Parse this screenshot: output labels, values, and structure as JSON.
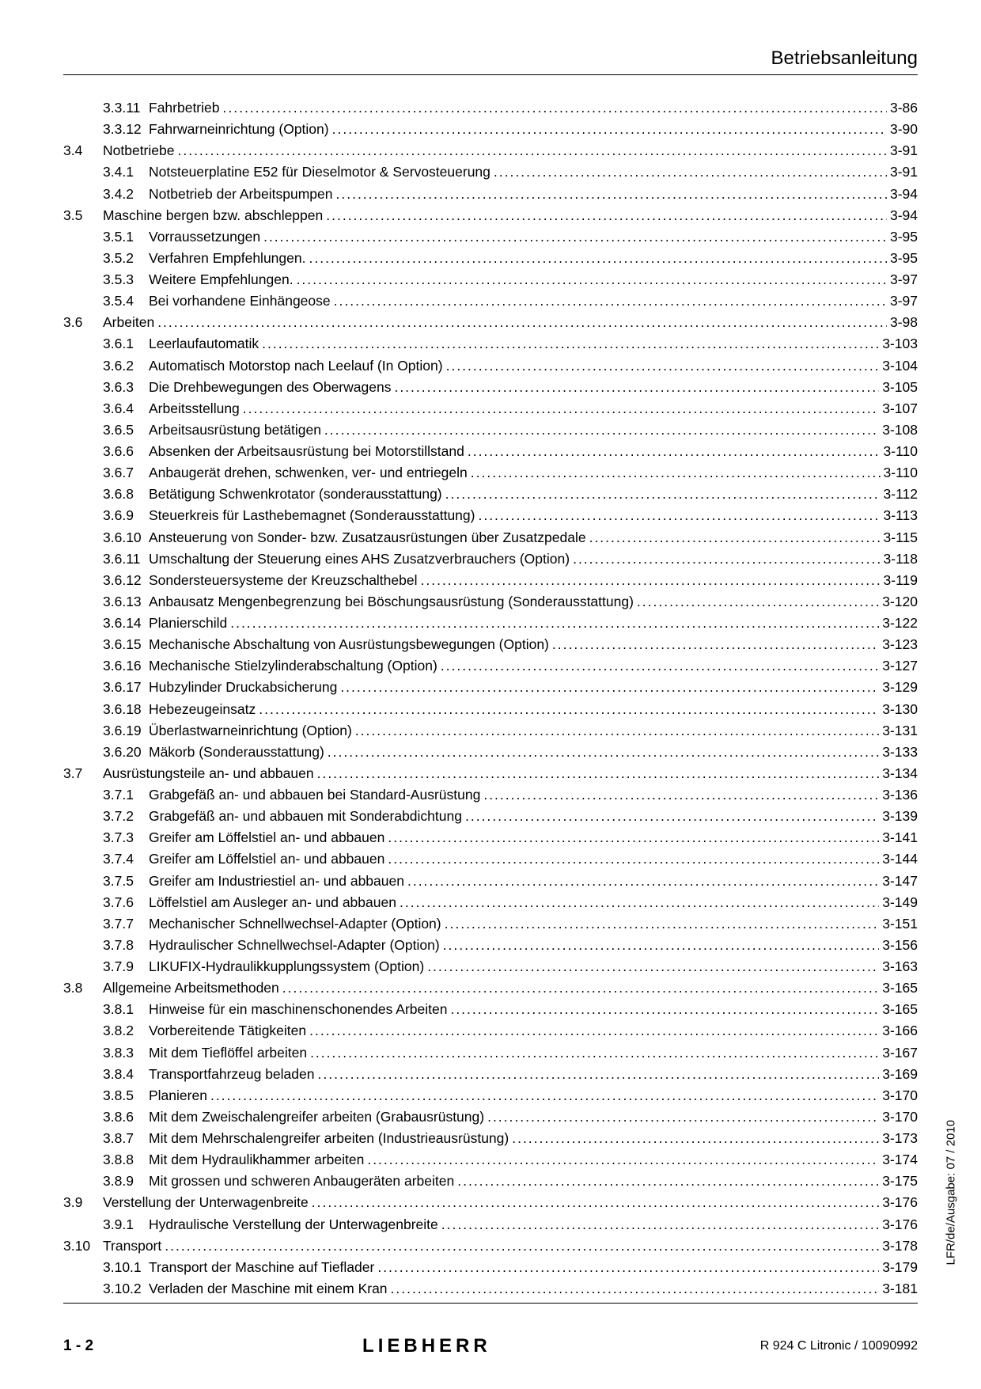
{
  "header": {
    "title": "Betriebsanleitung"
  },
  "footer": {
    "page_label": "1 - 2",
    "logo_text": "LIEBHERR",
    "doc_ref": "R 924 C Litronic / 10090992"
  },
  "side": {
    "text": "LFR/de/Ausgabe: 07 / 2010"
  },
  "toc": [
    {
      "sec": "",
      "sub": "3.3.11",
      "title": "Fahrbetrieb",
      "page": "3-86"
    },
    {
      "sec": "",
      "sub": "3.3.12",
      "title": "Fahrwarneinrichtung (Option)",
      "page": "3-90"
    },
    {
      "sec": "3.4",
      "sub": "",
      "title": "Notbetriebe",
      "page": "3-91"
    },
    {
      "sec": "",
      "sub": "3.4.1",
      "title": "Notsteuerplatine E52 für Dieselmotor & Servosteuerung",
      "page": "3-91"
    },
    {
      "sec": "",
      "sub": "3.4.2",
      "title": "Notbetrieb der Arbeitspumpen",
      "page": "3-94"
    },
    {
      "sec": "3.5",
      "sub": "",
      "title": "Maschine bergen bzw. abschleppen",
      "page": "3-94"
    },
    {
      "sec": "",
      "sub": "3.5.1",
      "title": "Vorraussetzungen",
      "page": "3-95"
    },
    {
      "sec": "",
      "sub": "3.5.2",
      "title": "Verfahren Empfehlungen.",
      "page": "3-95"
    },
    {
      "sec": "",
      "sub": "3.5.3",
      "title": "Weitere Empfehlungen.",
      "page": "3-97"
    },
    {
      "sec": "",
      "sub": "3.5.4",
      "title": "Bei vorhandene Einhängeose",
      "page": "3-97"
    },
    {
      "sec": "3.6",
      "sub": "",
      "title": "Arbeiten",
      "page": "3-98"
    },
    {
      "sec": "",
      "sub": "3.6.1",
      "title": "Leerlaufautomatik",
      "page": "3-103"
    },
    {
      "sec": "",
      "sub": "3.6.2",
      "title": "Automatisch Motorstop nach Leelauf (In Option)",
      "page": "3-104"
    },
    {
      "sec": "",
      "sub": "3.6.3",
      "title": "Die Drehbewegungen des Oberwagens",
      "page": "3-105"
    },
    {
      "sec": "",
      "sub": "3.6.4",
      "title": "Arbeitsstellung",
      "page": "3-107"
    },
    {
      "sec": "",
      "sub": "3.6.5",
      "title": "Arbeitsausrüstung betätigen",
      "page": "3-108"
    },
    {
      "sec": "",
      "sub": "3.6.6",
      "title": "Absenken der Arbeitsausrüstung bei Motorstillstand",
      "page": "3-110"
    },
    {
      "sec": "",
      "sub": "3.6.7",
      "title": "Anbaugerät drehen, schwenken, ver- und entriegeln",
      "page": "3-110"
    },
    {
      "sec": "",
      "sub": "3.6.8",
      "title": "Betätigung Schwenkrotator (sonderausstattung)",
      "page": "3-112"
    },
    {
      "sec": "",
      "sub": "3.6.9",
      "title": "Steuerkreis für Lasthebemagnet (Sonderausstattung)",
      "page": "3-113"
    },
    {
      "sec": "",
      "sub": "3.6.10",
      "title": "Ansteuerung von Sonder- bzw. Zusatzausrüstungen über Zusatzpedale",
      "page": "3-115"
    },
    {
      "sec": "",
      "sub": "3.6.11",
      "title": "Umschaltung der Steuerung eines AHS Zusatzverbrauchers (Option)",
      "page": "3-118"
    },
    {
      "sec": "",
      "sub": "3.6.12",
      "title": "Sondersteuersysteme der Kreuzschalthebel",
      "page": "3-119"
    },
    {
      "sec": "",
      "sub": "3.6.13",
      "title": "Anbausatz Mengenbegrenzung bei Böschungsausrüstung  (Sonderausstattung)",
      "page": "3-120"
    },
    {
      "sec": "",
      "sub": "3.6.14",
      "title": "Planierschild",
      "page": "3-122"
    },
    {
      "sec": "",
      "sub": "3.6.15",
      "title": "Mechanische Abschaltung von Ausrüstungsbewegungen (Option)",
      "page": "3-123"
    },
    {
      "sec": "",
      "sub": "3.6.16",
      "title": "Mechanische Stielzylinderabschaltung (Option)",
      "page": "3-127"
    },
    {
      "sec": "",
      "sub": "3.6.17",
      "title": "Hubzylinder Druckabsicherung",
      "page": "3-129"
    },
    {
      "sec": "",
      "sub": "3.6.18",
      "title": "Hebezeugeinsatz",
      "page": "3-130"
    },
    {
      "sec": "",
      "sub": "3.6.19",
      "title": "Überlastwarneinrichtung (Option)",
      "page": "3-131"
    },
    {
      "sec": "",
      "sub": "3.6.20",
      "title": "Mäkorb (Sonderausstattung)",
      "page": "3-133"
    },
    {
      "sec": "3.7",
      "sub": "",
      "title": "Ausrüstungsteile an- und abbauen",
      "page": "3-134"
    },
    {
      "sec": "",
      "sub": "3.7.1",
      "title": "Grabgefäß an- und abbauen bei Standard-Ausrüstung",
      "page": "3-136"
    },
    {
      "sec": "",
      "sub": "3.7.2",
      "title": "Grabgefäß an- und abbauen mit Sonderabdichtung",
      "page": "3-139"
    },
    {
      "sec": "",
      "sub": "3.7.3",
      "title": "Greifer am Löffelstiel an- und abbauen",
      "page": "3-141"
    },
    {
      "sec": "",
      "sub": "3.7.4",
      "title": "Greifer am Löffelstiel an- und abbauen",
      "page": "3-144"
    },
    {
      "sec": "",
      "sub": "3.7.5",
      "title": "Greifer am Industriestiel an- und abbauen",
      "page": "3-147"
    },
    {
      "sec": "",
      "sub": "3.7.6",
      "title": "Löffelstiel am Ausleger an- und abbauen",
      "page": "3-149"
    },
    {
      "sec": "",
      "sub": "3.7.7",
      "title": "Mechanischer Schnellwechsel-Adapter (Option)",
      "page": "3-151"
    },
    {
      "sec": "",
      "sub": "3.7.8",
      "title": "Hydraulischer Schnellwechsel-Adapter (Option)",
      "page": "3-156"
    },
    {
      "sec": "",
      "sub": "3.7.9",
      "title": "LIKUFIX-Hydraulikkupplungssystem (Option)",
      "page": "3-163"
    },
    {
      "sec": "3.8",
      "sub": "",
      "title": "Allgemeine Arbeitsmethoden",
      "page": "3-165"
    },
    {
      "sec": "",
      "sub": "3.8.1",
      "title": "Hinweise für ein maschinenschonendes Arbeiten",
      "page": "3-165"
    },
    {
      "sec": "",
      "sub": "3.8.2",
      "title": "Vorbereitende Tätigkeiten",
      "page": "3-166"
    },
    {
      "sec": "",
      "sub": "3.8.3",
      "title": "Mit dem Tieflöffel arbeiten",
      "page": "3-167"
    },
    {
      "sec": "",
      "sub": "3.8.4",
      "title": "Transportfahrzeug beladen",
      "page": "3-169"
    },
    {
      "sec": "",
      "sub": "3.8.5",
      "title": "Planieren",
      "page": "3-170"
    },
    {
      "sec": "",
      "sub": "3.8.6",
      "title": "Mit dem Zweischalengreifer arbeiten (Grabausrüstung)",
      "page": "3-170"
    },
    {
      "sec": "",
      "sub": "3.8.7",
      "title": "Mit dem Mehrschalengreifer arbeiten (Industrieausrüstung)",
      "page": "3-173"
    },
    {
      "sec": "",
      "sub": "3.8.8",
      "title": "Mit dem Hydraulikhammer arbeiten",
      "page": "3-174"
    },
    {
      "sec": "",
      "sub": "3.8.9",
      "title": "Mit grossen und schweren Anbaugeräten arbeiten",
      "page": "3-175"
    },
    {
      "sec": "3.9",
      "sub": "",
      "title": "Verstellung der Unterwagenbreite",
      "page": "3-176"
    },
    {
      "sec": "",
      "sub": "3.9.1",
      "title": "Hydraulische Verstellung der Unterwagenbreite",
      "page": "3-176"
    },
    {
      "sec": "3.10",
      "sub": "",
      "title": "Transport",
      "page": "3-178"
    },
    {
      "sec": "",
      "sub": "3.10.1",
      "title": "Transport der Maschine auf Tieflader",
      "page": "3-179"
    },
    {
      "sec": "",
      "sub": "3.10.2",
      "title": "Verladen der Maschine mit einem Kran",
      "page": "3-181"
    }
  ]
}
